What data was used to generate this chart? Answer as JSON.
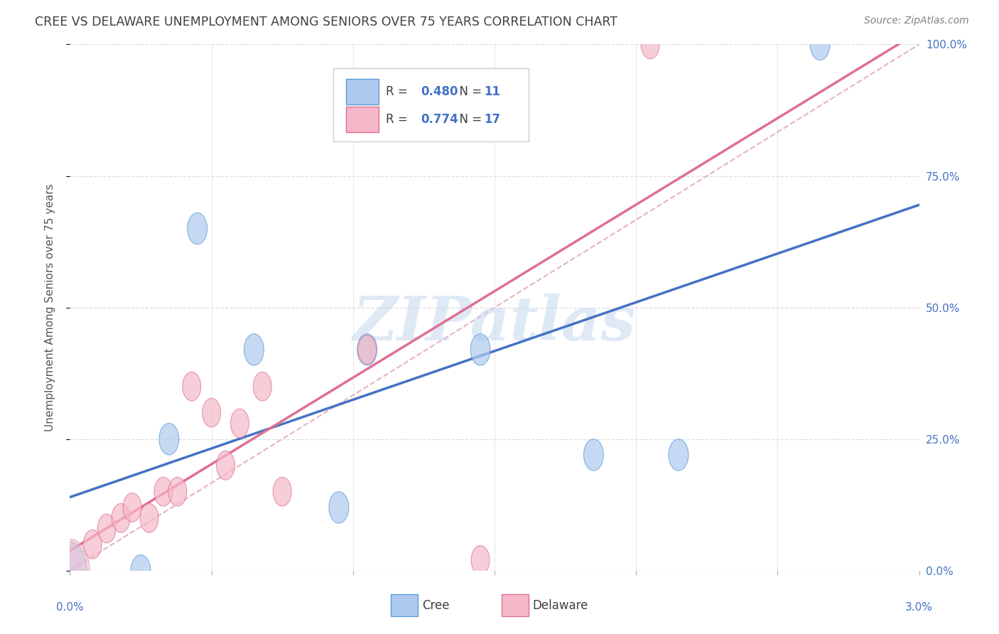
{
  "title": "CREE VS DELAWARE UNEMPLOYMENT AMONG SENIORS OVER 75 YEARS CORRELATION CHART",
  "source": "Source: ZipAtlas.com",
  "ylabel": "Unemployment Among Seniors over 75 years",
  "xlim": [
    0.0,
    3.0
  ],
  "ylim": [
    0.0,
    100.0
  ],
  "yticks": [
    0.0,
    25.0,
    50.0,
    75.0,
    100.0
  ],
  "xticks": [
    0.0,
    0.5,
    1.0,
    1.5,
    2.0,
    2.5,
    3.0
  ],
  "cree_fill_color": "#aec9ee",
  "cree_edge_color": "#5b9bd5",
  "delaware_fill_color": "#f5b8c8",
  "delaware_edge_color": "#e07090",
  "cree_line_color": "#4472c4",
  "delaware_line_color": "#e07090",
  "ref_line_color": "#d0a0b0",
  "axis_label_color": "#4472c4",
  "title_color": "#404040",
  "source_color": "#808080",
  "legend_text_color": "#404040",
  "legend_value_color": "#4472c4",
  "cree_R": 0.48,
  "cree_N": 11,
  "delaware_R": 0.774,
  "delaware_N": 17,
  "cree_points": [
    [
      0.0,
      0.0
    ],
    [
      0.25,
      0.0
    ],
    [
      0.35,
      25.0
    ],
    [
      0.45,
      65.0
    ],
    [
      0.65,
      42.0
    ],
    [
      0.95,
      12.0
    ],
    [
      1.05,
      42.0
    ],
    [
      1.45,
      42.0
    ],
    [
      1.85,
      22.0
    ],
    [
      2.15,
      22.0
    ],
    [
      2.65,
      100.0
    ]
  ],
  "delaware_points": [
    [
      0.0,
      0.0
    ],
    [
      0.08,
      5.0
    ],
    [
      0.13,
      8.0
    ],
    [
      0.18,
      10.0
    ],
    [
      0.22,
      12.0
    ],
    [
      0.28,
      10.0
    ],
    [
      0.33,
      15.0
    ],
    [
      0.38,
      15.0
    ],
    [
      0.43,
      35.0
    ],
    [
      0.5,
      30.0
    ],
    [
      0.55,
      20.0
    ],
    [
      0.6,
      28.0
    ],
    [
      0.68,
      35.0
    ],
    [
      0.75,
      15.0
    ],
    [
      1.05,
      42.0
    ],
    [
      1.45,
      2.0
    ],
    [
      2.05,
      100.0
    ]
  ],
  "background_color": "#ffffff",
  "grid_color": "#dddddd",
  "watermark_text": "ZIPatlas",
  "watermark_color": "#c5d8f0",
  "large_cree_ellipse": [
    0.0,
    0.0
  ],
  "large_delaware_ellipse": [
    0.0,
    0.0
  ]
}
